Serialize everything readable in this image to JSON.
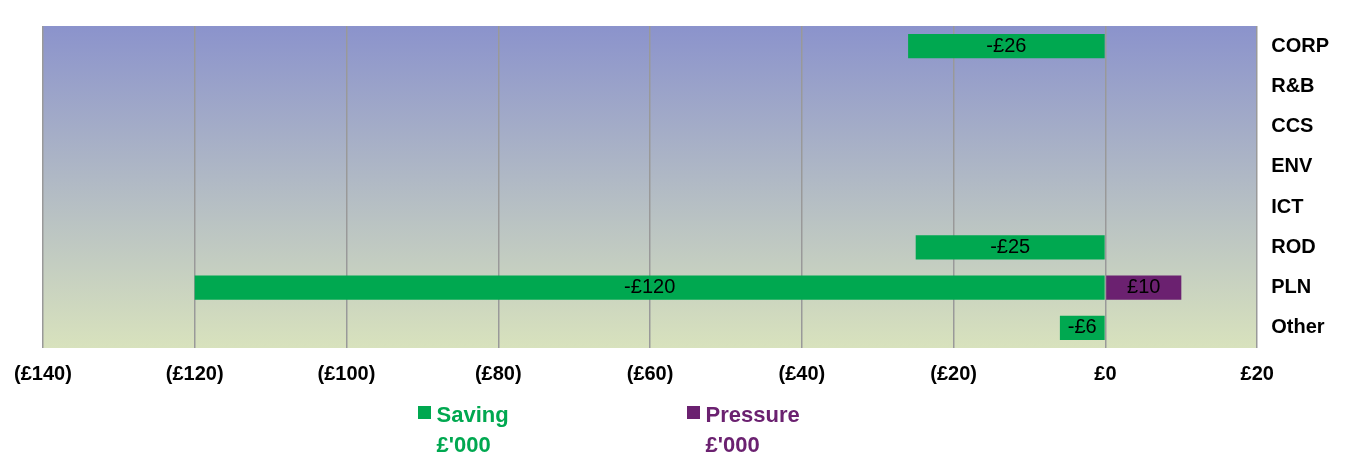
{
  "chart_data": {
    "type": "bar",
    "orientation": "horizontal",
    "categories": [
      "CORP",
      "R&B",
      "CCS",
      "ENV",
      "ICT",
      "ROD",
      "PLN",
      "Other"
    ],
    "series": [
      {
        "name": "Saving £'000",
        "color": "#00a850",
        "values": [
          -26,
          null,
          null,
          null,
          null,
          -25,
          -120,
          -6
        ],
        "value_labels": [
          "-£26",
          null,
          null,
          null,
          null,
          "-£25",
          "-£120",
          "-£6"
        ]
      },
      {
        "name": "Pressure £'000",
        "color": "#6b2170",
        "values": [
          null,
          null,
          null,
          null,
          null,
          null,
          10,
          null
        ],
        "value_labels": [
          null,
          null,
          null,
          null,
          null,
          null,
          "£10",
          null
        ]
      }
    ],
    "xlim": [
      -140,
      20
    ],
    "xticks": [
      {
        "value": -140,
        "label": "(£140)"
      },
      {
        "value": -120,
        "label": "(£120)"
      },
      {
        "value": -100,
        "label": "(£100)"
      },
      {
        "value": -80,
        "label": "(£80)"
      },
      {
        "value": -60,
        "label": "(£60)"
      },
      {
        "value": -40,
        "label": "(£40)"
      },
      {
        "value": -20,
        "label": "(£20)"
      },
      {
        "value": 0,
        "label": "£0"
      },
      {
        "value": 20,
        "label": "£20"
      }
    ],
    "grid": "x",
    "legend": "bottom"
  }
}
